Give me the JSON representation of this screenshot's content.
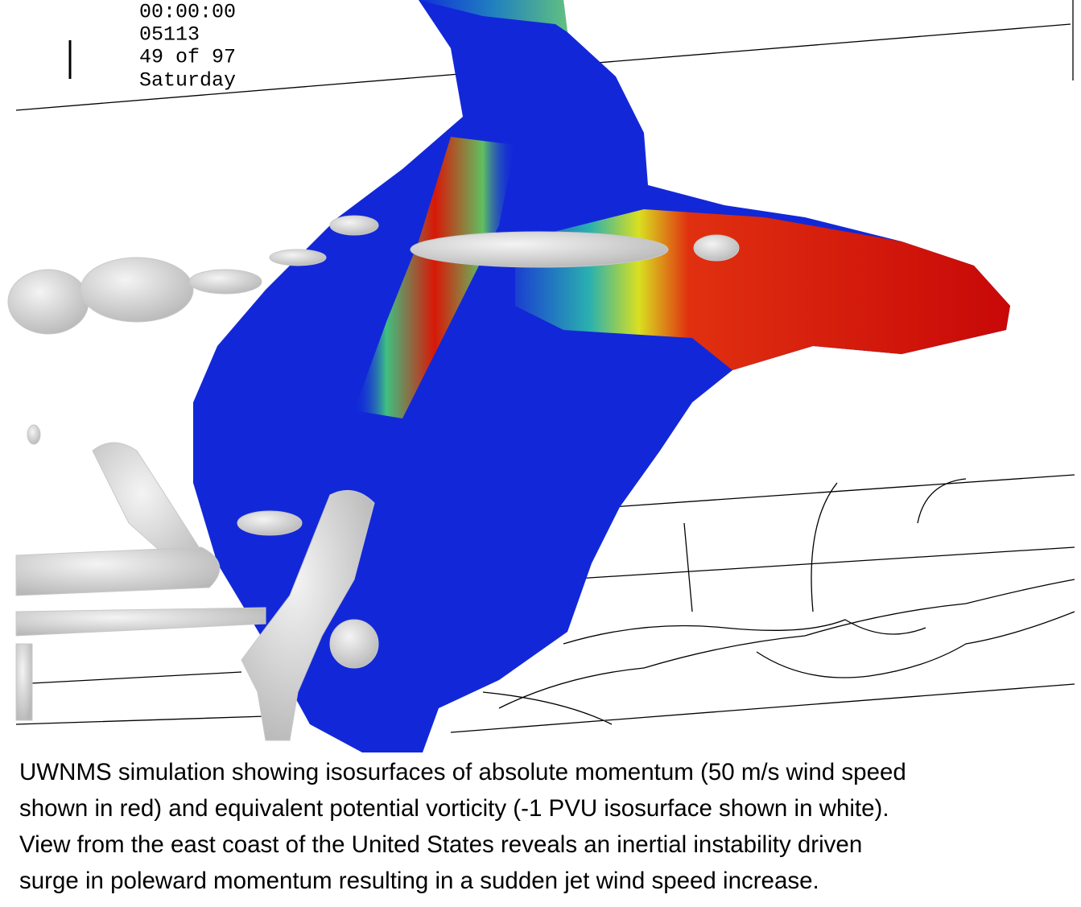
{
  "overlay": {
    "lines": [
      "00:00:00",
      "05113",
      "49 of 97",
      "Saturday"
    ]
  },
  "caption": {
    "lines": [
      "UWNMS simulation showing isosurfaces of absolute momentum (50 m/s wind speed",
      "shown in red) and equivalent potential vorticity (-1 PVU isosurface shown in white).",
      "View from the east coast of the United States reveals an inertial instability driven",
      "surge in poleward momentum resulting in a sudden jet wind speed increase."
    ]
  }
}
